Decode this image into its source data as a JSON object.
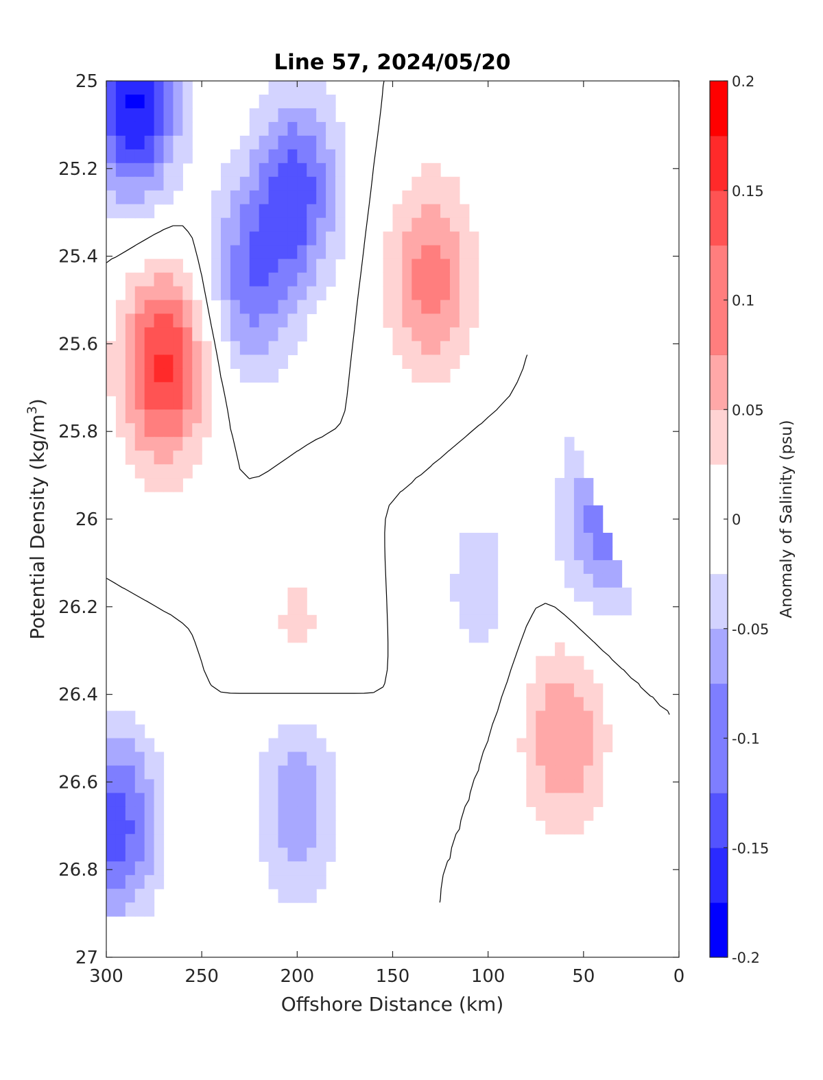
{
  "chart_data": {
    "type": "heatmap",
    "subtype": "filled-contour-section",
    "title": "Line 57, 2024/05/20",
    "xlabel": "Offshore Distance (km)",
    "ylabel_main": "Potential Density (kg/m",
    "ylabel_sup": "3",
    "ylabel_close": ")",
    "colorbar_label": "Anomaly of Salinity (psu)",
    "x_ticks": [
      "300",
      "250",
      "200",
      "150",
      "100",
      "50",
      "0"
    ],
    "y_ticks": [
      "25",
      "25.2",
      "25.4",
      "25.6",
      "25.8",
      "26",
      "26.2",
      "26.4",
      "26.6",
      "26.8",
      "27"
    ],
    "colorbar_ticks": [
      "0.2",
      "0.15",
      "0.1",
      "0.05",
      "0",
      "-0.05",
      "-0.1",
      "-0.15",
      "-0.2"
    ],
    "xlim": [
      300,
      0
    ],
    "ylim": [
      25,
      27
    ],
    "x_reversed": true,
    "y_reversed": true,
    "clim": [
      -0.2,
      0.2
    ],
    "contour_step": 0.025,
    "zero_contour_line": true,
    "colormap": [
      "#0000ff",
      "#2a2aff",
      "#5353ff",
      "#7e7eff",
      "#a8a8ff",
      "#d3d3ff",
      "#ffffff",
      "#ffffff",
      "#ffd3d3",
      "#ffa8a8",
      "#ff7e7e",
      "#ff5353",
      "#ff2a2a",
      "#ff0000"
    ],
    "colormap_bounds": [
      -0.2,
      -0.175,
      -0.15,
      -0.125,
      -0.1,
      -0.075,
      -0.05,
      -0.025,
      0,
      0.025,
      0.05,
      0.075,
      0.1,
      0.125,
      0.15,
      0.175,
      0.2
    ],
    "grid": false,
    "data_extent": {
      "top_sigma": 25,
      "bottom_sigma": 26.9,
      "offshore_km": 300,
      "inshore_km": 5
    },
    "features": [
      {
        "x": 285,
        "y": 25.05,
        "value": -0.175
      },
      {
        "x": 270,
        "y": 25.65,
        "value": 0.15
      },
      {
        "x": 200,
        "y": 25.25,
        "value": -0.125
      },
      {
        "x": 225,
        "y": 25.45,
        "value": -0.1
      },
      {
        "x": 130,
        "y": 25.45,
        "value": 0.1
      },
      {
        "x": 60,
        "y": 26.5,
        "value": 0.085
      },
      {
        "x": 200,
        "y": 26.25,
        "value": 0.035
      },
      {
        "x": 200,
        "y": 26.65,
        "value": -0.08
      },
      {
        "x": 295,
        "y": 26.7,
        "value": -0.13
      },
      {
        "x": 40,
        "y": 26.0,
        "value": -0.1
      },
      {
        "x": 105,
        "y": 26.15,
        "value": -0.04
      }
    ]
  }
}
